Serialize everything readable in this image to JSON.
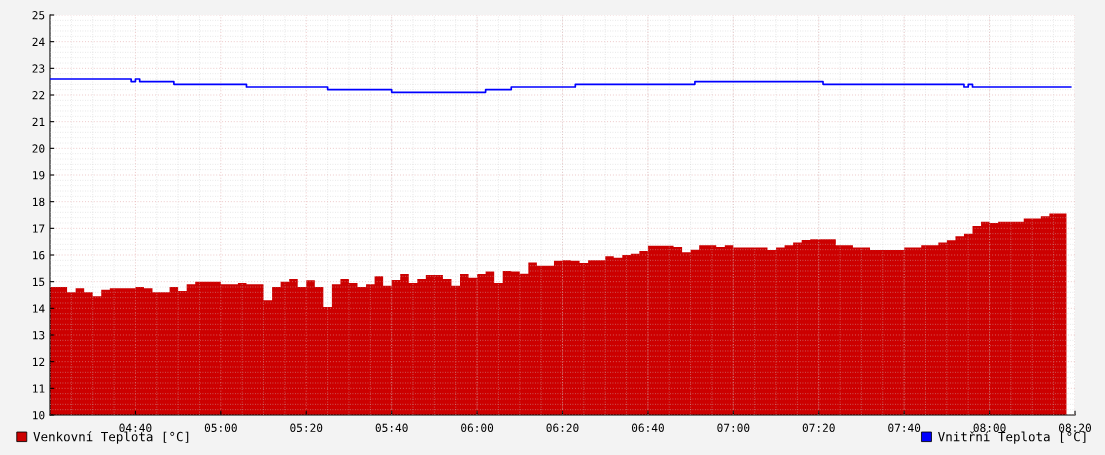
{
  "chart_data": {
    "type": "area",
    "legend": "bottom",
    "grid": true,
    "xlim": [
      4.3333,
      8.3333
    ],
    "ylim": [
      10,
      25
    ],
    "xticks": [
      {
        "value": 4.6667,
        "label": "04:40"
      },
      {
        "value": 5.0,
        "label": "05:00"
      },
      {
        "value": 5.3333,
        "label": "05:20"
      },
      {
        "value": 5.6667,
        "label": "05:40"
      },
      {
        "value": 6.0,
        "label": "06:00"
      },
      {
        "value": 6.3333,
        "label": "06:20"
      },
      {
        "value": 6.6667,
        "label": "06:40"
      },
      {
        "value": 7.0,
        "label": "07:00"
      },
      {
        "value": 7.3333,
        "label": "07:20"
      },
      {
        "value": 7.6667,
        "label": "07:40"
      },
      {
        "value": 8.0,
        "label": "08:00"
      },
      {
        "value": 8.3333,
        "label": "08:20"
      }
    ],
    "yticks": [
      10,
      11,
      12,
      13,
      14,
      15,
      16,
      17,
      18,
      19,
      20,
      21,
      22,
      23,
      24,
      25
    ],
    "series": [
      {
        "name": "Venkovní Teplota [°C]",
        "color": "#cc0000",
        "x": [
          4.3333,
          4.3667,
          4.4,
          4.4333,
          4.4667,
          4.5,
          4.5333,
          4.5667,
          4.6,
          4.6333,
          4.6667,
          4.7,
          4.7333,
          4.7667,
          4.8,
          4.8333,
          4.8667,
          4.9,
          4.9333,
          4.9667,
          5.0,
          5.0333,
          5.0667,
          5.1,
          5.1333,
          5.1667,
          5.2,
          5.2333,
          5.2667,
          5.3,
          5.3333,
          5.3667,
          5.4,
          5.4333,
          5.4667,
          5.5,
          5.5333,
          5.5667,
          5.6,
          5.6333,
          5.6667,
          5.7,
          5.7333,
          5.7667,
          5.8,
          5.8333,
          5.8667,
          5.9,
          5.9333,
          5.9667,
          6.0,
          6.0333,
          6.0667,
          6.1,
          6.1333,
          6.1667,
          6.2,
          6.2333,
          6.2667,
          6.3,
          6.3333,
          6.3667,
          6.4,
          6.4333,
          6.4667,
          6.5,
          6.5333,
          6.5667,
          6.6,
          6.6333,
          6.6667,
          6.7,
          6.7333,
          6.7667,
          6.8,
          6.8333,
          6.8667,
          6.9,
          6.9333,
          6.9667,
          7.0,
          7.0333,
          7.0667,
          7.1,
          7.1333,
          7.1667,
          7.2,
          7.2333,
          7.2667,
          7.3,
          7.3333,
          7.3667,
          7.4,
          7.4333,
          7.4667,
          7.5,
          7.5333,
          7.5667,
          7.6,
          7.6333,
          7.6667,
          7.7,
          7.7333,
          7.7667,
          7.8,
          7.8333,
          7.8667,
          7.9,
          7.9333,
          7.9667,
          8.0,
          8.0333,
          8.0667,
          8.1,
          8.1333,
          8.1667,
          8.2,
          8.2333,
          8.2667,
          8.3
        ],
        "values": [
          14.8,
          14.8,
          14.6,
          14.75,
          14.6,
          14.45,
          14.7,
          14.75,
          14.75,
          14.75,
          14.8,
          14.75,
          14.6,
          14.6,
          14.8,
          14.65,
          14.9,
          15.0,
          15.0,
          15.0,
          14.9,
          14.9,
          14.95,
          14.9,
          14.9,
          14.3,
          14.8,
          15.0,
          15.1,
          14.8,
          15.05,
          14.8,
          14.05,
          14.9,
          15.1,
          14.95,
          14.8,
          14.9,
          15.2,
          14.85,
          15.06,
          15.29,
          14.95,
          15.1,
          15.25,
          15.25,
          15.1,
          14.85,
          15.29,
          15.15,
          15.29,
          15.38,
          14.95,
          15.4,
          15.38,
          15.3,
          15.72,
          15.6,
          15.6,
          15.78,
          15.8,
          15.78,
          15.7,
          15.8,
          15.8,
          15.95,
          15.9,
          16.0,
          16.05,
          16.15,
          16.35,
          16.35,
          16.35,
          16.3,
          16.1,
          16.2,
          16.37,
          16.37,
          16.3,
          16.37,
          16.28,
          16.28,
          16.28,
          16.28,
          16.19,
          16.28,
          16.37,
          16.47,
          16.56,
          16.59,
          16.59,
          16.59,
          16.37,
          16.37,
          16.28,
          16.28,
          16.19,
          16.19,
          16.19,
          16.19,
          16.28,
          16.28,
          16.37,
          16.37,
          16.47,
          16.55,
          16.7,
          16.8,
          17.09,
          17.25,
          17.2,
          17.25,
          17.25,
          17.25,
          17.37,
          17.37,
          17.45,
          17.56,
          17.56,
          17.75
        ]
      },
      {
        "name": "Vnitřní Teplota [°C]",
        "type": "step",
        "color": "#0000ff",
        "x": [
          4.3333,
          4.65,
          4.6667,
          4.6833,
          4.8167,
          5.1,
          5.4167,
          5.6667,
          6.0333,
          6.1333,
          6.3833,
          6.85,
          7.35,
          7.9,
          7.9167,
          7.9333,
          8.3167
        ],
        "values": [
          22.6,
          22.5,
          22.6,
          22.5,
          22.4,
          22.3,
          22.2,
          22.1,
          22.2,
          22.3,
          22.4,
          22.5,
          22.4,
          22.3,
          22.4,
          22.3,
          22.3
        ]
      }
    ]
  }
}
